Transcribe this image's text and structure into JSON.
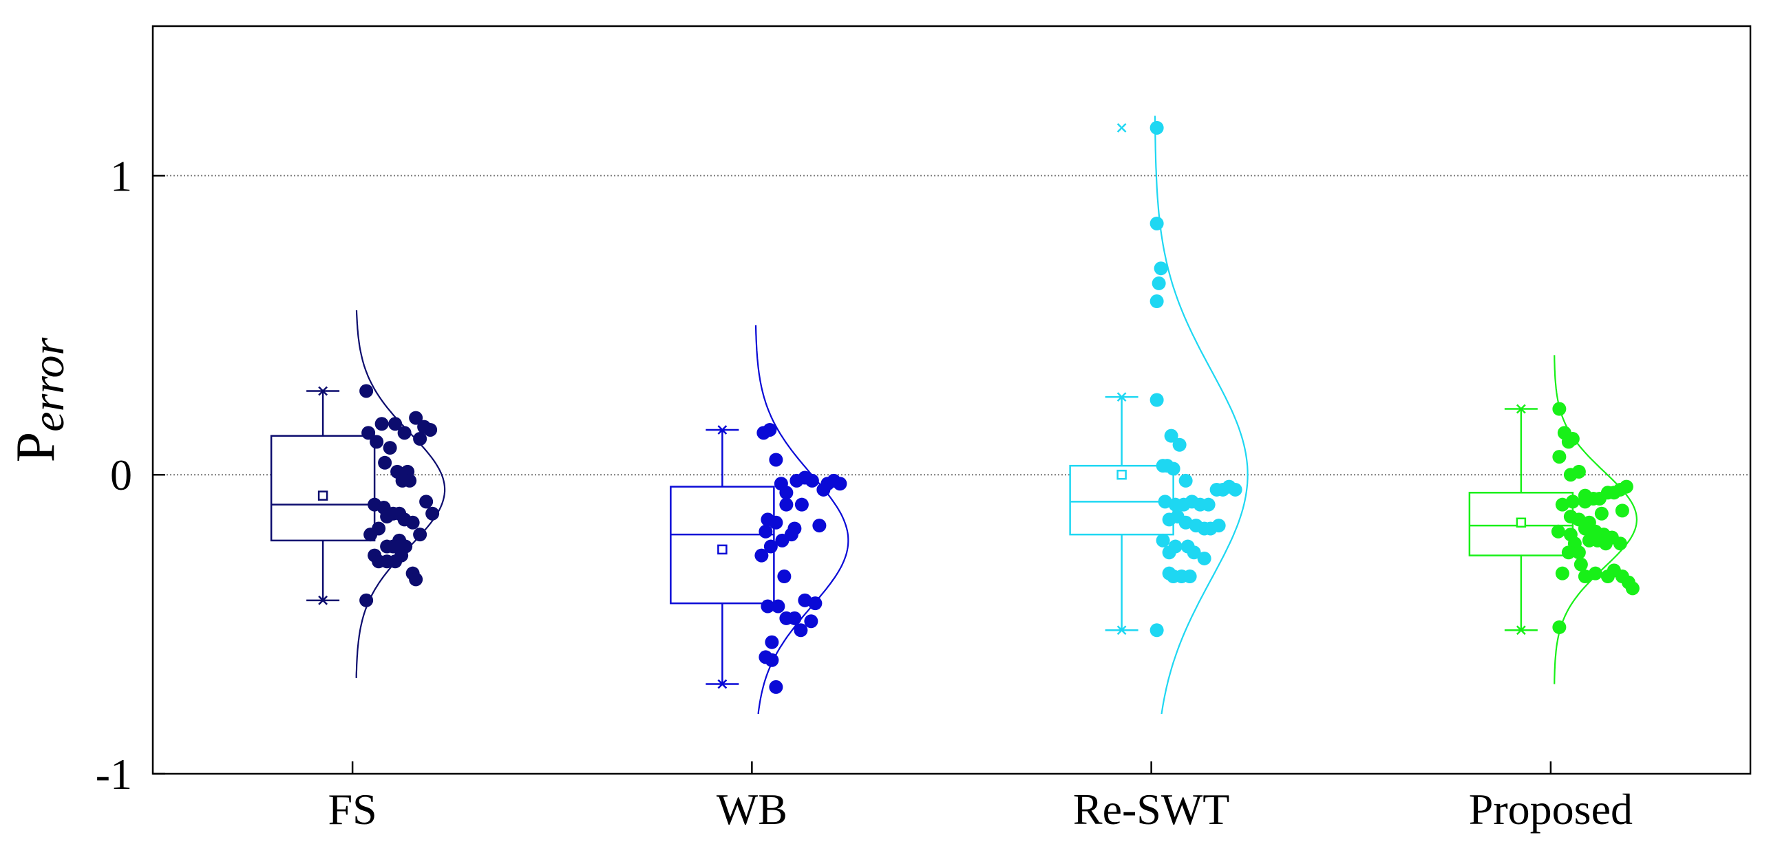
{
  "chart_data": {
    "type": "box",
    "title": "",
    "xlabel": "",
    "ylabel_main": "P",
    "ylabel_sub": "error",
    "ylim": [
      -1,
      1.5
    ],
    "yticks": [
      {
        "value": -1,
        "label": "-1"
      },
      {
        "value": 0,
        "label": "0"
      },
      {
        "value": 1,
        "label": "1"
      }
    ],
    "reference_lines": [
      0,
      1
    ],
    "categories": [
      "FS",
      "WB",
      "Re-SWT",
      "Proposed"
    ],
    "series": [
      {
        "name": "FS",
        "color": "#0c0c6e",
        "box": {
          "q1": -0.22,
          "median": -0.1,
          "q3": 0.13,
          "mean": -0.07,
          "whisker_low": -0.42,
          "whisker_high": 0.28
        },
        "outliers": [],
        "dist": {
          "mu": -0.05,
          "sigma": 0.19,
          "amp": 0.43,
          "min": -0.68,
          "max": 0.55
        },
        "points": [
          [
            0.1,
            0.28
          ],
          [
            0.12,
            0.14
          ],
          [
            0.2,
            0.11
          ],
          [
            0.25,
            0.17
          ],
          [
            0.33,
            0.09
          ],
          [
            0.28,
            0.04
          ],
          [
            0.4,
            0.01
          ],
          [
            0.5,
            0.01
          ],
          [
            0.38,
            0.17
          ],
          [
            0.47,
            0.14
          ],
          [
            0.58,
            0.19
          ],
          [
            0.66,
            0.16
          ],
          [
            0.72,
            0.15
          ],
          [
            0.62,
            0.12
          ],
          [
            0.45,
            -0.02
          ],
          [
            0.52,
            -0.02
          ],
          [
            0.68,
            -0.09
          ],
          [
            0.74,
            -0.13
          ],
          [
            0.18,
            -0.1
          ],
          [
            0.27,
            -0.11
          ],
          [
            0.3,
            -0.14
          ],
          [
            0.36,
            -0.13
          ],
          [
            0.42,
            -0.13
          ],
          [
            0.47,
            -0.15
          ],
          [
            0.14,
            -0.2
          ],
          [
            0.22,
            -0.18
          ],
          [
            0.55,
            -0.16
          ],
          [
            0.62,
            -0.2
          ],
          [
            0.18,
            -0.27
          ],
          [
            0.3,
            -0.24
          ],
          [
            0.42,
            -0.22
          ],
          [
            0.48,
            -0.24
          ],
          [
            0.22,
            -0.29
          ],
          [
            0.3,
            -0.29
          ],
          [
            0.38,
            -0.29
          ],
          [
            0.44,
            -0.27
          ],
          [
            0.36,
            -0.24
          ],
          [
            0.55,
            -0.33
          ],
          [
            0.58,
            -0.35
          ],
          [
            0.1,
            -0.42
          ]
        ]
      },
      {
        "name": "WB",
        "color": "#0a0ad6",
        "box": {
          "q1": -0.43,
          "median": -0.2,
          "q3": -0.04,
          "mean": -0.25,
          "whisker_low": -0.7,
          "whisker_high": 0.15
        },
        "outliers": [],
        "dist": {
          "mu": -0.22,
          "sigma": 0.22,
          "amp": 0.45,
          "min": -0.8,
          "max": 0.5
        },
        "points": [
          [
            0.08,
            0.14
          ],
          [
            0.14,
            0.15
          ],
          [
            0.2,
            0.05
          ],
          [
            0.25,
            -0.03
          ],
          [
            0.3,
            -0.06
          ],
          [
            0.4,
            -0.02
          ],
          [
            0.48,
            -0.01
          ],
          [
            0.55,
            -0.02
          ],
          [
            0.7,
            -0.03
          ],
          [
            0.76,
            -0.02
          ],
          [
            0.82,
            -0.03
          ],
          [
            0.66,
            -0.05
          ],
          [
            0.12,
            -0.15
          ],
          [
            0.2,
            -0.16
          ],
          [
            0.3,
            -0.1
          ],
          [
            0.38,
            -0.18
          ],
          [
            0.45,
            -0.1
          ],
          [
            0.62,
            -0.17
          ],
          [
            0.1,
            -0.19
          ],
          [
            0.15,
            -0.24
          ],
          [
            0.26,
            -0.22
          ],
          [
            0.35,
            -0.2
          ],
          [
            0.06,
            -0.27
          ],
          [
            0.28,
            -0.34
          ],
          [
            0.12,
            -0.44
          ],
          [
            0.22,
            -0.44
          ],
          [
            0.48,
            -0.42
          ],
          [
            0.58,
            -0.43
          ],
          [
            0.3,
            -0.48
          ],
          [
            0.38,
            -0.48
          ],
          [
            0.54,
            -0.49
          ],
          [
            0.16,
            -0.56
          ],
          [
            0.44,
            -0.52
          ],
          [
            0.1,
            -0.61
          ],
          [
            0.16,
            -0.62
          ],
          [
            0.2,
            -0.71
          ]
        ]
      },
      {
        "name": "Re-SWT",
        "color": "#1ed7f2",
        "box": {
          "q1": -0.2,
          "median": -0.09,
          "q3": 0.03,
          "mean": 0.0,
          "whisker_low": -0.52,
          "whisker_high": 0.26
        },
        "outliers": [
          1.16
        ],
        "dist": {
          "mu": 0.0,
          "sigma": 0.35,
          "amp": 0.45,
          "min": -0.8,
          "max": 1.2
        },
        "points": [
          [
            0.02,
            1.16
          ],
          [
            0.02,
            0.84
          ],
          [
            0.06,
            0.69
          ],
          [
            0.04,
            0.64
          ],
          [
            0.02,
            0.58
          ],
          [
            0.02,
            0.25
          ],
          [
            0.16,
            0.13
          ],
          [
            0.24,
            0.1
          ],
          [
            0.08,
            0.03
          ],
          [
            0.12,
            0.03
          ],
          [
            0.18,
            0.02
          ],
          [
            0.3,
            -0.02
          ],
          [
            0.6,
            -0.05
          ],
          [
            0.66,
            -0.05
          ],
          [
            0.72,
            -0.04
          ],
          [
            0.78,
            -0.05
          ],
          [
            0.1,
            -0.09
          ],
          [
            0.2,
            -0.1
          ],
          [
            0.28,
            -0.1
          ],
          [
            0.36,
            -0.09
          ],
          [
            0.44,
            -0.1
          ],
          [
            0.52,
            -0.1
          ],
          [
            0.14,
            -0.15
          ],
          [
            0.22,
            -0.14
          ],
          [
            0.3,
            -0.16
          ],
          [
            0.4,
            -0.17
          ],
          [
            0.48,
            -0.18
          ],
          [
            0.54,
            -0.18
          ],
          [
            0.62,
            -0.17
          ],
          [
            0.08,
            -0.22
          ],
          [
            0.14,
            -0.26
          ],
          [
            0.2,
            -0.24
          ],
          [
            0.32,
            -0.24
          ],
          [
            0.38,
            -0.26
          ],
          [
            0.48,
            -0.28
          ],
          [
            0.14,
            -0.33
          ],
          [
            0.18,
            -0.34
          ],
          [
            0.26,
            -0.34
          ],
          [
            0.34,
            -0.34
          ],
          [
            0.02,
            -0.52
          ]
        ]
      },
      {
        "name": "Proposed",
        "color": "#18f018",
        "box": {
          "q1": -0.27,
          "median": -0.17,
          "q3": -0.06,
          "mean": -0.16,
          "whisker_low": -0.52,
          "whisker_high": 0.22
        },
        "outliers": [],
        "dist": {
          "mu": -0.15,
          "sigma": 0.16,
          "amp": 0.4,
          "min": -0.7,
          "max": 0.4
        },
        "points": [
          [
            0.05,
            0.22
          ],
          [
            0.1,
            0.14
          ],
          [
            0.14,
            0.11
          ],
          [
            0.18,
            0.12
          ],
          [
            0.05,
            0.06
          ],
          [
            0.16,
            0.0
          ],
          [
            0.24,
            0.01
          ],
          [
            0.3,
            -0.07
          ],
          [
            0.44,
            -0.08
          ],
          [
            0.52,
            -0.06
          ],
          [
            0.58,
            -0.06
          ],
          [
            0.64,
            -0.05
          ],
          [
            0.7,
            -0.04
          ],
          [
            0.08,
            -0.1
          ],
          [
            0.18,
            -0.09
          ],
          [
            0.3,
            -0.09
          ],
          [
            0.38,
            -0.08
          ],
          [
            0.16,
            -0.14
          ],
          [
            0.24,
            -0.15
          ],
          [
            0.34,
            -0.16
          ],
          [
            0.46,
            -0.13
          ],
          [
            0.66,
            -0.12
          ],
          [
            0.04,
            -0.19
          ],
          [
            0.16,
            -0.2
          ],
          [
            0.3,
            -0.18
          ],
          [
            0.4,
            -0.19
          ],
          [
            0.48,
            -0.2
          ],
          [
            0.56,
            -0.21
          ],
          [
            0.5,
            -0.23
          ],
          [
            0.2,
            -0.23
          ],
          [
            0.34,
            -0.22
          ],
          [
            0.42,
            -0.22
          ],
          [
            0.64,
            -0.23
          ],
          [
            0.14,
            -0.26
          ],
          [
            0.24,
            -0.26
          ],
          [
            0.08,
            -0.33
          ],
          [
            0.26,
            -0.3
          ],
          [
            0.3,
            -0.34
          ],
          [
            0.4,
            -0.33
          ],
          [
            0.52,
            -0.34
          ],
          [
            0.58,
            -0.32
          ],
          [
            0.66,
            -0.34
          ],
          [
            0.72,
            -0.36
          ],
          [
            0.76,
            -0.38
          ],
          [
            0.05,
            -0.51
          ]
        ]
      }
    ]
  }
}
